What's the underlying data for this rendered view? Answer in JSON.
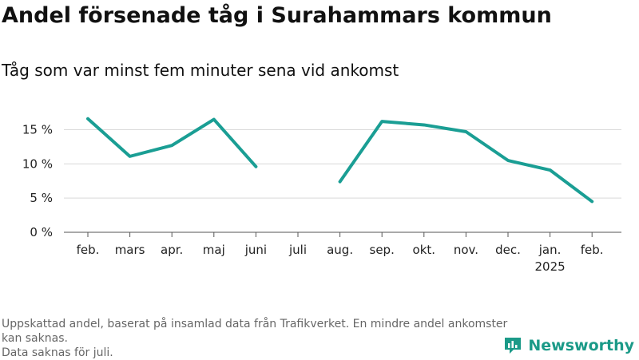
{
  "title": "Andel försenade tåg i Surahammars kommun",
  "subtitle": "Tåg som var minst fem minuter sena vid ankomst",
  "footnote": {
    "line1": "Uppskattad andel, baserat på insamlad data från Trafikverket. En mindre andel ankomster kan saknas.",
    "line2": "Data saknas för juli."
  },
  "brand": {
    "name": "Newsworthy",
    "color": "#1b9a88"
  },
  "chart_data": {
    "type": "line",
    "categories": [
      "feb.",
      "mars",
      "apr.",
      "maj",
      "juni",
      "juli",
      "aug.",
      "sep.",
      "okt.",
      "nov.",
      "dec.",
      "jan.",
      "feb."
    ],
    "category_sublabels": [
      "",
      "",
      "",
      "",
      "",
      "",
      "",
      "",
      "",
      "",
      "",
      "2025",
      ""
    ],
    "series": [
      {
        "values": [
          16.6,
          11.1,
          12.7,
          16.5,
          9.6,
          null,
          7.4,
          16.2,
          15.7,
          14.7,
          10.5,
          9.1,
          4.5
        ],
        "color": "#1a9e94"
      }
    ],
    "yticks": [
      0,
      5,
      10,
      15
    ],
    "ytick_labels": [
      "0 %",
      "5 %",
      "10 %",
      "15 %"
    ],
    "ylim": [
      0,
      18
    ],
    "grid": true
  }
}
